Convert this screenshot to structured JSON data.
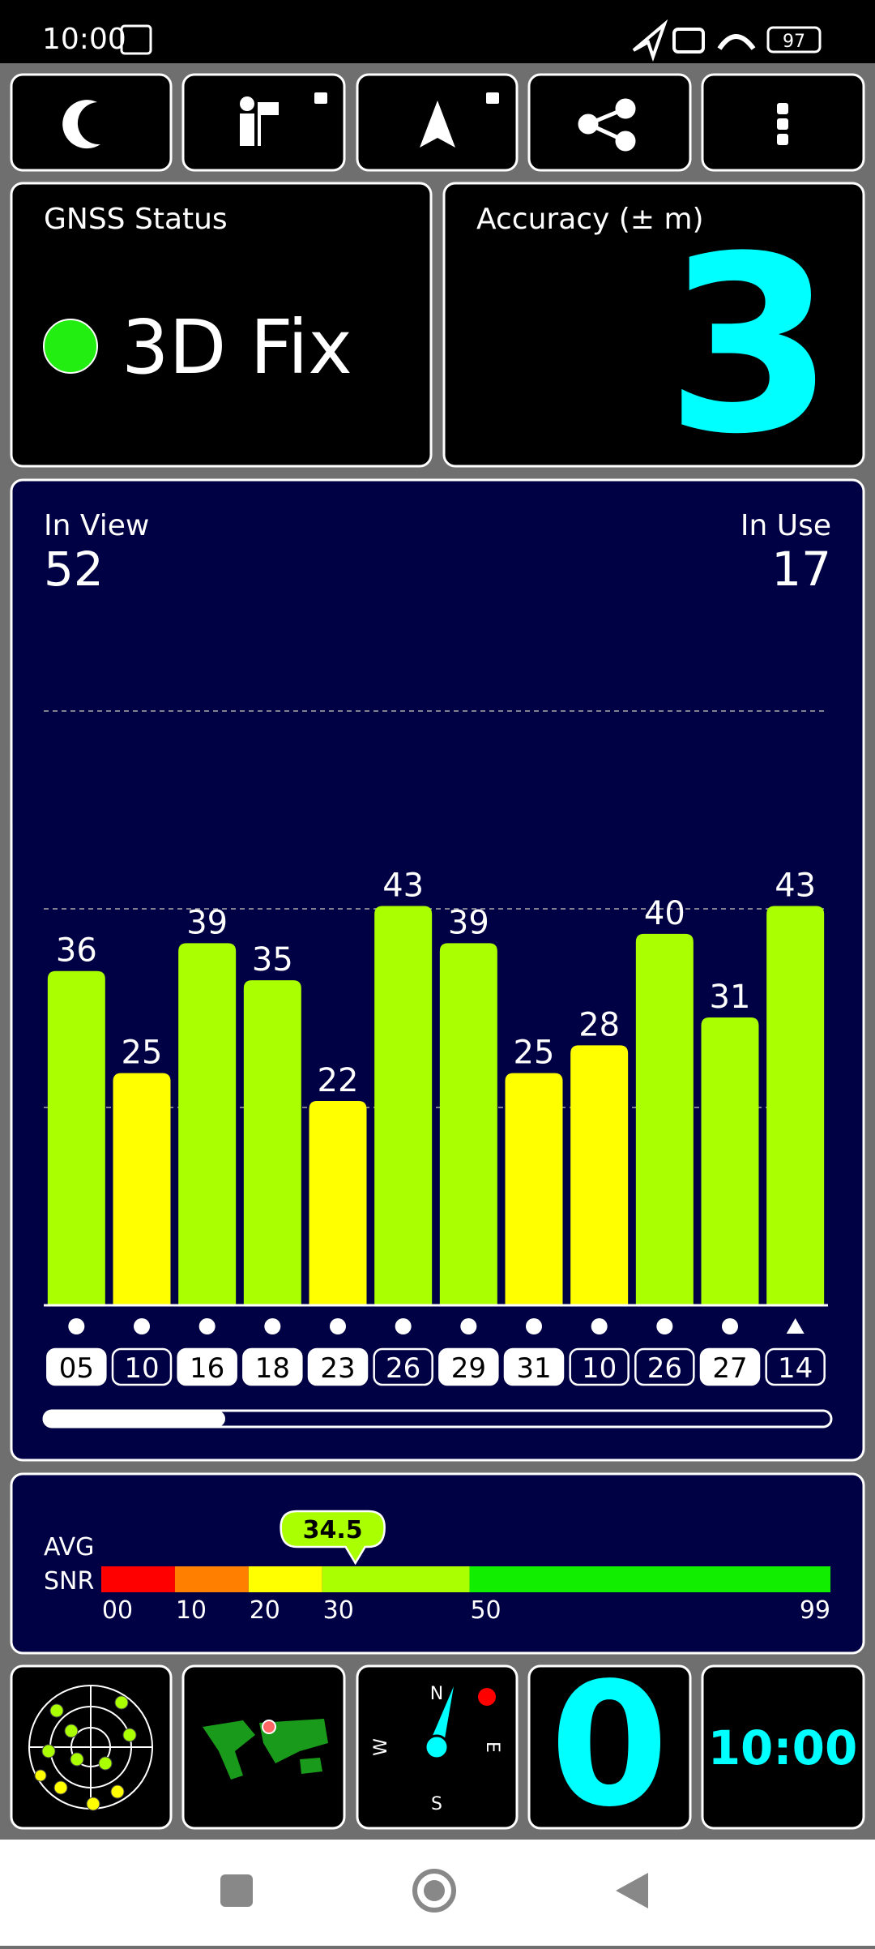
{
  "status_bar": {
    "time": "10:00",
    "battery": "97"
  },
  "gnss_status": {
    "title": "GNSS Status",
    "fix": "3D Fix",
    "fix_color": "#22ee11"
  },
  "accuracy": {
    "title": "Accuracy (± m)",
    "value": "3"
  },
  "satellites": {
    "in_view_label": "In View",
    "in_view": 52,
    "in_use_label": "In Use",
    "in_use": 17
  },
  "chart_data": {
    "type": "bar",
    "categories": [
      "05",
      "10",
      "16",
      "18",
      "23",
      "26",
      "29",
      "31",
      "10",
      "26",
      "27",
      "14"
    ],
    "values": [
      36,
      25,
      39,
      35,
      22,
      43,
      39,
      25,
      28,
      40,
      31,
      43
    ],
    "colors": [
      "#aaff00",
      "#ffff00",
      "#aaff00",
      "#aaff00",
      "#ffff00",
      "#aaff00",
      "#aaff00",
      "#ffff00",
      "#ffff00",
      "#aaff00",
      "#aaff00",
      "#aaff00"
    ],
    "in_use": [
      true,
      false,
      true,
      true,
      true,
      false,
      true,
      true,
      false,
      false,
      true,
      false
    ],
    "markers": [
      "dot",
      "dot",
      "dot",
      "dot",
      "dot",
      "dot",
      "dot",
      "dot",
      "dot",
      "dot",
      "dot",
      "triangle"
    ],
    "ylim": [
      0,
      64
    ],
    "yticks": [
      21.3,
      42.7,
      64
    ],
    "grid": true
  },
  "snr": {
    "label_1": "AVG",
    "label_2": "SNR",
    "average": 34.5,
    "xlim": [
      0,
      99
    ],
    "xticks": [
      {
        "value": 0,
        "label": "00"
      },
      10,
      20,
      30,
      50,
      99
    ],
    "segment_colors": [
      "#ff0000",
      "#ff8000",
      "#ffff00",
      "#aaff00",
      "#11ee00"
    ]
  },
  "tiles": {
    "compass": {
      "north": "N",
      "east": "E",
      "south": "S",
      "west": "W"
    },
    "speed": "0",
    "clock": "10:00"
  }
}
